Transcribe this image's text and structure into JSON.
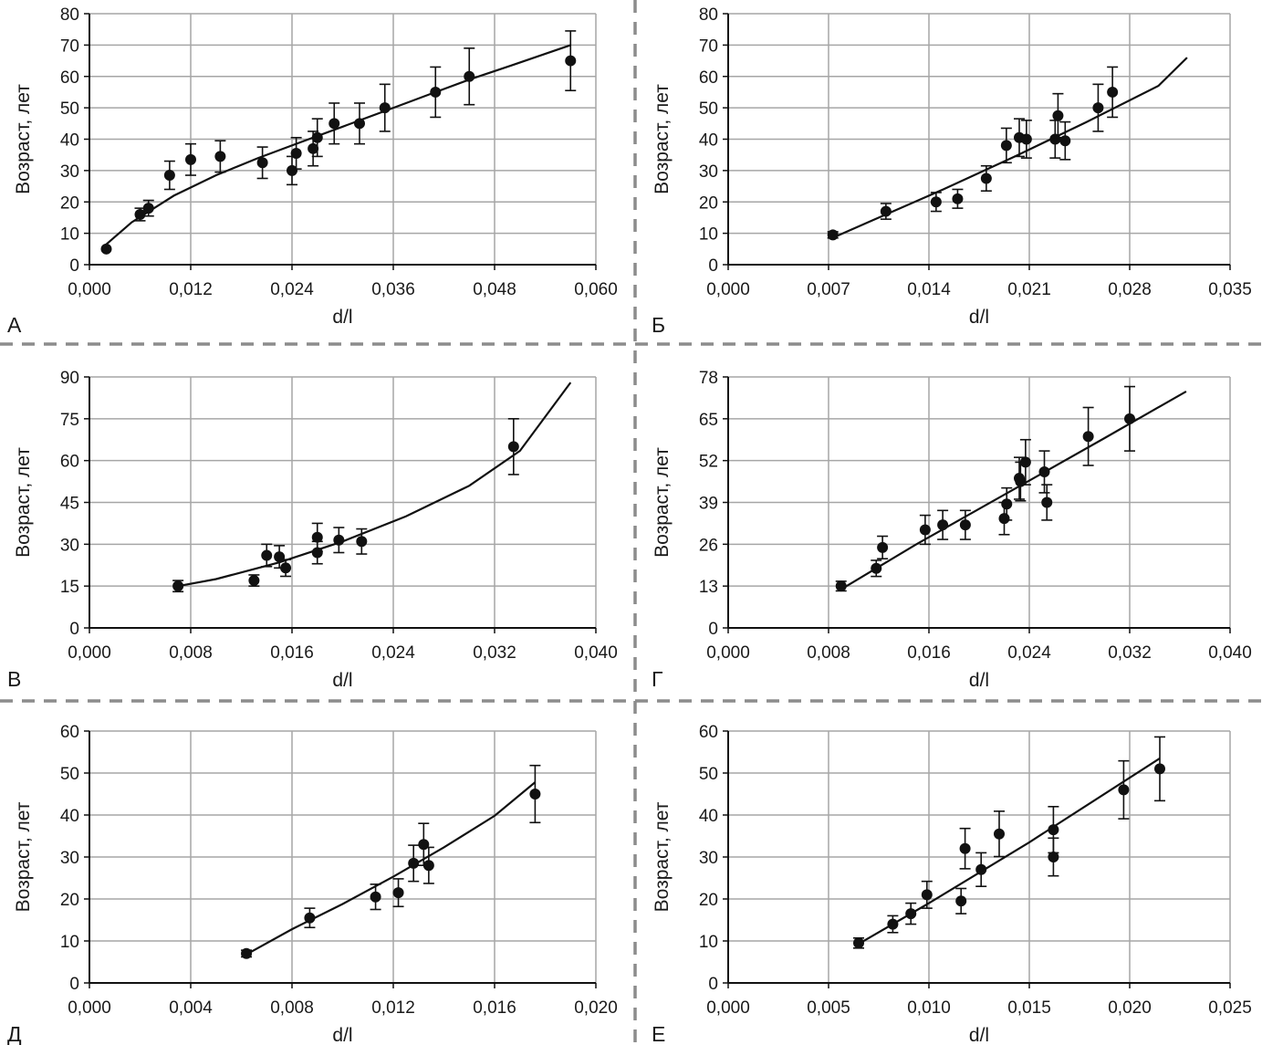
{
  "figure": {
    "colors": {
      "grid": "#a6a6a6",
      "separator": "#8c8c8c",
      "ink": "#111111"
    }
  },
  "chart_data": [
    {
      "type": "scatter",
      "panel_label": "А",
      "xlabel": "d/l",
      "ylabel": "Возраст, лет",
      "xlim": [
        0,
        0.06
      ],
      "ylim": [
        0,
        80
      ],
      "x_ticks": [
        "0,000",
        "0,012",
        "0,024",
        "0,036",
        "0,048",
        "0,060"
      ],
      "y_ticks": [
        "0",
        "10",
        "20",
        "30",
        "40",
        "50",
        "60",
        "70",
        "80"
      ],
      "grid": true,
      "points": [
        {
          "x": 0.002,
          "y": 5,
          "err": 0
        },
        {
          "x": 0.006,
          "y": 16,
          "err": 2
        },
        {
          "x": 0.007,
          "y": 18,
          "err": 2.5
        },
        {
          "x": 0.0095,
          "y": 28.5,
          "err": 4.5
        },
        {
          "x": 0.012,
          "y": 33.5,
          "err": 5
        },
        {
          "x": 0.0155,
          "y": 34.5,
          "err": 5
        },
        {
          "x": 0.0205,
          "y": 32.5,
          "err": 5
        },
        {
          "x": 0.024,
          "y": 30,
          "err": 4.5
        },
        {
          "x": 0.0245,
          "y": 35.5,
          "err": 5
        },
        {
          "x": 0.0265,
          "y": 37,
          "err": 5.5
        },
        {
          "x": 0.027,
          "y": 40.5,
          "err": 6
        },
        {
          "x": 0.029,
          "y": 45,
          "err": 6.5
        },
        {
          "x": 0.032,
          "y": 45,
          "err": 6.5
        },
        {
          "x": 0.035,
          "y": 50,
          "err": 7.5
        },
        {
          "x": 0.041,
          "y": 55,
          "err": 8
        },
        {
          "x": 0.045,
          "y": 60,
          "err": 9
        },
        {
          "x": 0.057,
          "y": 65,
          "err": 9.5
        }
      ],
      "fit": {
        "x": [
          0.002,
          0.005,
          0.01,
          0.015,
          0.02,
          0.025,
          0.03,
          0.035,
          0.04,
          0.045,
          0.05,
          0.057
        ],
        "y": [
          6.5,
          13.5,
          22,
          28.5,
          34,
          39,
          44,
          49,
          54,
          59,
          63.5,
          70
        ]
      }
    },
    {
      "type": "scatter",
      "panel_label": "Б",
      "xlabel": "d/l",
      "ylabel": "Возраст, лет",
      "xlim": [
        0,
        0.035
      ],
      "ylim": [
        0,
        80
      ],
      "x_ticks": [
        "0,000",
        "0,007",
        "0,014",
        "0,021",
        "0,028",
        "0,035"
      ],
      "y_ticks": [
        "0",
        "10",
        "20",
        "30",
        "40",
        "50",
        "60",
        "70",
        "80"
      ],
      "grid": true,
      "points": [
        {
          "x": 0.0073,
          "y": 9.5,
          "err": 1
        },
        {
          "x": 0.011,
          "y": 17,
          "err": 2.5
        },
        {
          "x": 0.0145,
          "y": 20,
          "err": 3
        },
        {
          "x": 0.016,
          "y": 21,
          "err": 3
        },
        {
          "x": 0.018,
          "y": 27.5,
          "err": 4
        },
        {
          "x": 0.0194,
          "y": 38,
          "err": 5.5
        },
        {
          "x": 0.0203,
          "y": 40.5,
          "err": 6
        },
        {
          "x": 0.0208,
          "y": 40,
          "err": 6
        },
        {
          "x": 0.0228,
          "y": 40,
          "err": 6
        },
        {
          "x": 0.023,
          "y": 47.5,
          "err": 7
        },
        {
          "x": 0.0235,
          "y": 39.5,
          "err": 6
        },
        {
          "x": 0.0258,
          "y": 50,
          "err": 7.5
        },
        {
          "x": 0.0268,
          "y": 55,
          "err": 8
        }
      ],
      "fit": {
        "x": [
          0.0075,
          0.01,
          0.015,
          0.02,
          0.025,
          0.03,
          0.032
        ],
        "y": [
          9,
          14,
          24,
          34.5,
          45.5,
          57,
          66
        ]
      }
    },
    {
      "type": "scatter",
      "panel_label": "В",
      "xlabel": "d/l",
      "ylabel": "Возраст, лет",
      "xlim": [
        0,
        0.04
      ],
      "ylim": [
        0,
        90
      ],
      "x_ticks": [
        "0,000",
        "0,008",
        "0,016",
        "0,024",
        "0,032",
        "0,040"
      ],
      "y_ticks": [
        "0",
        "15",
        "30",
        "45",
        "60",
        "75",
        "90"
      ],
      "grid": true,
      "points": [
        {
          "x": 0.007,
          "y": 15,
          "err": 2
        },
        {
          "x": 0.013,
          "y": 17,
          "err": 2
        },
        {
          "x": 0.014,
          "y": 26,
          "err": 4
        },
        {
          "x": 0.015,
          "y": 25.5,
          "err": 4
        },
        {
          "x": 0.0155,
          "y": 21.5,
          "err": 3
        },
        {
          "x": 0.018,
          "y": 32.5,
          "err": 5
        },
        {
          "x": 0.018,
          "y": 27,
          "err": 4
        },
        {
          "x": 0.0197,
          "y": 31.5,
          "err": 4.5
        },
        {
          "x": 0.0215,
          "y": 31,
          "err": 4.5
        },
        {
          "x": 0.0335,
          "y": 65,
          "err": 10
        }
      ],
      "fit": {
        "x": [
          0.007,
          0.01,
          0.015,
          0.02,
          0.025,
          0.03,
          0.034,
          0.038
        ],
        "y": [
          15,
          17.5,
          23.5,
          31,
          40,
          51,
          63.5,
          88
        ]
      }
    },
    {
      "type": "scatter",
      "panel_label": "Г",
      "xlabel": "d/l",
      "ylabel": "Возраст, лет",
      "xlim": [
        0,
        0.04
      ],
      "ylim": [
        0,
        78
      ],
      "x_ticks": [
        "0,000",
        "0,008",
        "0,016",
        "0,024",
        "0,032",
        "0,040"
      ],
      "y_ticks": [
        "0",
        "13",
        "26",
        "39",
        "52",
        "65",
        "78"
      ],
      "grid": true,
      "points": [
        {
          "x": 0.009,
          "y": 13,
          "err": 1.5
        },
        {
          "x": 0.0118,
          "y": 18.5,
          "err": 2.5
        },
        {
          "x": 0.0123,
          "y": 25,
          "err": 3.5
        },
        {
          "x": 0.0157,
          "y": 30.5,
          "err": 4.5
        },
        {
          "x": 0.0171,
          "y": 32,
          "err": 4.5
        },
        {
          "x": 0.0189,
          "y": 32,
          "err": 4.5
        },
        {
          "x": 0.022,
          "y": 34,
          "err": 5
        },
        {
          "x": 0.0222,
          "y": 38.5,
          "err": 5
        },
        {
          "x": 0.0232,
          "y": 46.5,
          "err": 6.5
        },
        {
          "x": 0.0233,
          "y": 45.5,
          "err": 6
        },
        {
          "x": 0.0237,
          "y": 51.5,
          "err": 7
        },
        {
          "x": 0.0252,
          "y": 48.5,
          "err": 6.5
        },
        {
          "x": 0.0254,
          "y": 39,
          "err": 5.5
        },
        {
          "x": 0.0287,
          "y": 59.5,
          "err": 9
        },
        {
          "x": 0.032,
          "y": 65,
          "err": 10
        }
      ],
      "fit": {
        "x": [
          0.009,
          0.015,
          0.02,
          0.025,
          0.03,
          0.0365
        ],
        "y": [
          12,
          26,
          37,
          48,
          59,
          73.5
        ]
      }
    },
    {
      "type": "scatter",
      "panel_label": "Д",
      "xlabel": "d/l",
      "ylabel": "Возраст, лет",
      "xlim": [
        0,
        0.02
      ],
      "ylim": [
        0,
        60
      ],
      "x_ticks": [
        "0,000",
        "0,004",
        "0,008",
        "0,012",
        "0,016",
        "0,020"
      ],
      "y_ticks": [
        "0",
        "10",
        "20",
        "30",
        "40",
        "50",
        "60"
      ],
      "grid": true,
      "points": [
        {
          "x": 0.0062,
          "y": 7,
          "err": 0.8
        },
        {
          "x": 0.0087,
          "y": 15.5,
          "err": 2.3
        },
        {
          "x": 0.0113,
          "y": 20.5,
          "err": 3
        },
        {
          "x": 0.0122,
          "y": 21.5,
          "err": 3.3
        },
        {
          "x": 0.0128,
          "y": 28.5,
          "err": 4.3
        },
        {
          "x": 0.0132,
          "y": 33,
          "err": 5
        },
        {
          "x": 0.0134,
          "y": 28,
          "err": 4.3
        },
        {
          "x": 0.0176,
          "y": 45,
          "err": 6.8
        }
      ],
      "fit": {
        "x": [
          0.0062,
          0.008,
          0.01,
          0.012,
          0.014,
          0.016,
          0.0176
        ],
        "y": [
          6.8,
          12.8,
          18.8,
          25.3,
          32.3,
          39.8,
          47.8
        ]
      }
    },
    {
      "type": "scatter",
      "panel_label": "Е",
      "xlabel": "d/l",
      "ylabel": "Возраст, лет",
      "xlim": [
        0,
        0.025
      ],
      "ylim": [
        0,
        60
      ],
      "x_ticks": [
        "0,000",
        "0,005",
        "0,010",
        "0,015",
        "0,020",
        "0,025"
      ],
      "y_ticks": [
        "0",
        "10",
        "20",
        "30",
        "40",
        "50",
        "60"
      ],
      "grid": true,
      "points": [
        {
          "x": 0.0065,
          "y": 9.5,
          "err": 1.2
        },
        {
          "x": 0.0082,
          "y": 14,
          "err": 2
        },
        {
          "x": 0.0091,
          "y": 16.5,
          "err": 2.5
        },
        {
          "x": 0.0099,
          "y": 21,
          "err": 3.2
        },
        {
          "x": 0.0116,
          "y": 19.5,
          "err": 3
        },
        {
          "x": 0.0118,
          "y": 32,
          "err": 4.8
        },
        {
          "x": 0.0126,
          "y": 27,
          "err": 4
        },
        {
          "x": 0.0135,
          "y": 35.5,
          "err": 5.4
        },
        {
          "x": 0.0162,
          "y": 36.5,
          "err": 5.5
        },
        {
          "x": 0.0162,
          "y": 30,
          "err": 4.5
        },
        {
          "x": 0.0197,
          "y": 46,
          "err": 6.9
        },
        {
          "x": 0.0215,
          "y": 51,
          "err": 7.6
        }
      ],
      "fit": {
        "x": [
          0.0065,
          0.01,
          0.015,
          0.0215
        ],
        "y": [
          9.3,
          19,
          33.5,
          53.5
        ]
      }
    }
  ]
}
